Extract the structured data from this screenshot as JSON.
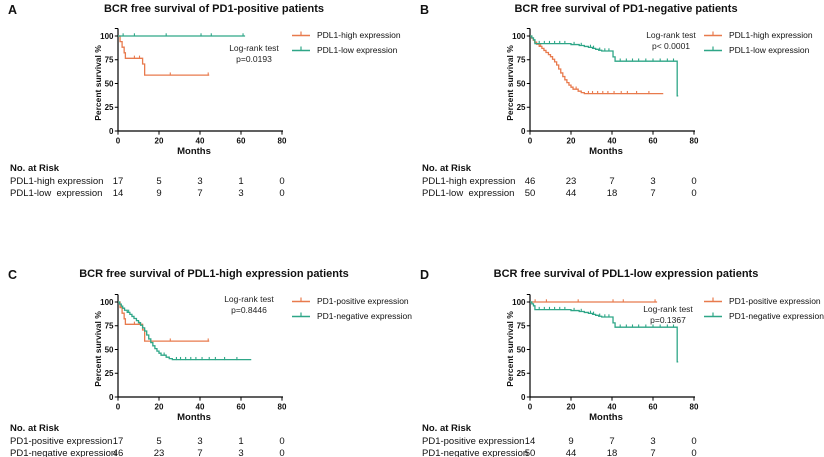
{
  "shared": {
    "colors": {
      "orange": "#E87A4D",
      "teal": "#2EA687",
      "axis": "#000000"
    },
    "x_axis": {
      "label": "Months",
      "ticks": [
        0,
        20,
        40,
        60,
        80
      ]
    },
    "y_axis": {
      "label": "Percent survival %",
      "ticks": [
        0,
        25,
        50,
        75,
        100
      ]
    },
    "risk_header": "No. at Risk"
  },
  "curves": {
    "pd1pos_pdl1high": {
      "steps": [
        [
          0,
          100
        ],
        [
          1,
          100
        ],
        [
          1,
          94.1
        ],
        [
          2,
          94.1
        ],
        [
          2,
          88.2
        ],
        [
          3,
          88.2
        ],
        [
          3,
          82.3
        ],
        [
          3.6,
          82.3
        ],
        [
          3.6,
          76.5
        ],
        [
          12,
          76.5
        ],
        [
          12,
          70.5
        ],
        [
          13,
          70.5
        ],
        [
          13,
          58.8
        ],
        [
          44.5,
          58.8
        ]
      ],
      "censors": [
        [
          8,
          76.5
        ],
        [
          10.5,
          76.5
        ],
        [
          25.5,
          58.8
        ],
        [
          44,
          58.8
        ]
      ]
    },
    "pd1pos_pdl1low": {
      "steps": [
        [
          0,
          100
        ],
        [
          62,
          100
        ]
      ],
      "censors": [
        [
          2.5,
          100
        ],
        [
          8,
          100
        ],
        [
          23.5,
          100
        ],
        [
          40.5,
          100
        ],
        [
          45.5,
          100
        ],
        [
          61,
          100
        ]
      ]
    },
    "pd1neg_pdl1high": {
      "steps": [
        [
          0,
          100
        ],
        [
          0.8,
          100
        ],
        [
          0.8,
          97.8
        ],
        [
          1.6,
          97.8
        ],
        [
          1.6,
          95.6
        ],
        [
          2.3,
          95.6
        ],
        [
          2.3,
          93.5
        ],
        [
          3.2,
          93.5
        ],
        [
          3.2,
          91.3
        ],
        [
          4.5,
          91.3
        ],
        [
          4.5,
          89.1
        ],
        [
          5.8,
          89.1
        ],
        [
          5.8,
          87
        ],
        [
          6.8,
          87
        ],
        [
          6.8,
          84.8
        ],
        [
          7.8,
          84.8
        ],
        [
          7.8,
          82.6
        ],
        [
          9,
          82.6
        ],
        [
          9,
          80.4
        ],
        [
          10,
          80.4
        ],
        [
          10,
          78.2
        ],
        [
          11,
          78.2
        ],
        [
          11,
          75.5
        ],
        [
          12,
          75.5
        ],
        [
          12,
          72.8
        ],
        [
          13,
          72.8
        ],
        [
          13,
          69.5
        ],
        [
          14,
          69.5
        ],
        [
          14,
          65.3
        ],
        [
          15,
          65.3
        ],
        [
          15,
          61.1
        ],
        [
          16,
          61.1
        ],
        [
          16,
          57.3
        ],
        [
          17,
          57.3
        ],
        [
          17,
          53.9
        ],
        [
          18,
          53.9
        ],
        [
          18,
          50.9
        ],
        [
          19,
          50.9
        ],
        [
          19,
          48.3
        ],
        [
          20,
          48.3
        ],
        [
          20,
          46.1
        ],
        [
          21,
          46.1
        ],
        [
          21,
          44
        ],
        [
          23.5,
          44
        ],
        [
          23.5,
          41.9
        ],
        [
          25,
          41.9
        ],
        [
          25,
          40.4
        ],
        [
          26.5,
          40.4
        ],
        [
          26.5,
          39.3
        ],
        [
          65,
          39.3
        ]
      ],
      "censors": [
        [
          5.2,
          89.1
        ],
        [
          22.5,
          44
        ],
        [
          28.5,
          39.3
        ],
        [
          30.5,
          39.3
        ],
        [
          33,
          39.3
        ],
        [
          35.5,
          39.3
        ],
        [
          38,
          39.3
        ],
        [
          41,
          39.3
        ],
        [
          44.5,
          39.3
        ],
        [
          47.5,
          39.3
        ],
        [
          52,
          39.3
        ],
        [
          58,
          39.3
        ]
      ]
    },
    "pd1neg_pdl1low": {
      "steps": [
        [
          0,
          100
        ],
        [
          0.9,
          100
        ],
        [
          0.9,
          98
        ],
        [
          1.7,
          98
        ],
        [
          1.7,
          96
        ],
        [
          2.4,
          96
        ],
        [
          2.4,
          92
        ],
        [
          20,
          92
        ],
        [
          20,
          91
        ],
        [
          24,
          91
        ],
        [
          24,
          90
        ],
        [
          26.5,
          90
        ],
        [
          26.5,
          89
        ],
        [
          28.5,
          89
        ],
        [
          28.5,
          88
        ],
        [
          30.5,
          88
        ],
        [
          30.5,
          87
        ],
        [
          32,
          87
        ],
        [
          32,
          86
        ],
        [
          33.5,
          86
        ],
        [
          33.5,
          85
        ],
        [
          35,
          85
        ],
        [
          35,
          84.2
        ],
        [
          40.5,
          84.2
        ],
        [
          40.5,
          78
        ],
        [
          41.5,
          78
        ],
        [
          41.5,
          73.5
        ],
        [
          71.8,
          73.5
        ],
        [
          71.8,
          37
        ],
        [
          72.3,
          37
        ]
      ],
      "censors": [
        [
          4.5,
          92
        ],
        [
          7,
          92
        ],
        [
          9.5,
          92
        ],
        [
          12,
          92
        ],
        [
          14.5,
          92
        ],
        [
          17,
          92
        ],
        [
          21.5,
          91
        ],
        [
          25,
          90
        ],
        [
          29.5,
          88
        ],
        [
          31,
          87
        ],
        [
          34,
          85
        ],
        [
          36.5,
          84.2
        ],
        [
          38.5,
          84.2
        ],
        [
          44,
          73.5
        ],
        [
          47,
          73.5
        ],
        [
          50,
          73.5
        ],
        [
          53,
          73.5
        ],
        [
          56.5,
          73.5
        ],
        [
          60,
          73.5
        ],
        [
          63.5,
          73.5
        ],
        [
          67,
          73.5
        ],
        [
          70,
          73.5
        ]
      ]
    }
  },
  "chart_data": [
    {
      "letter": "A",
      "type": "line",
      "subtype": "kaplan-meier-step",
      "title": "BCR free survival of PD1-positive patients",
      "xlabel": "Months",
      "ylabel": "Percent survival %",
      "xlim": [
        0,
        80
      ],
      "ylim": [
        0,
        100
      ],
      "legend_position": "right-outside-top",
      "annotation": [
        "Log-rank test",
        "p=0.0193"
      ],
      "series": [
        {
          "name": "PDL1-high expression",
          "color": "orange",
          "curve": "pd1pos_pdl1high"
        },
        {
          "name": "PDL1-low expression",
          "color": "teal",
          "curve": "pd1pos_pdl1low"
        }
      ],
      "risk_table": {
        "rows": [
          {
            "label": "PDL1-high expression",
            "values": [
              "17",
              "5",
              "3",
              "1",
              "0"
            ]
          },
          {
            "label": "PDL1-low  expression",
            "values": [
              "14",
              "9",
              "7",
              "3",
              "0"
            ]
          }
        ]
      }
    },
    {
      "letter": "B",
      "type": "line",
      "subtype": "kaplan-meier-step",
      "title": "BCR free survival of PD1-negative patients",
      "xlabel": "Months",
      "ylabel": "Percent survival %",
      "xlim": [
        0,
        80
      ],
      "ylim": [
        0,
        100
      ],
      "legend_position": "right-outside-top",
      "annotation": [
        "Log-rank test",
        "p< 0.0001"
      ],
      "series": [
        {
          "name": "PDL1-high expression",
          "color": "orange",
          "curve": "pd1neg_pdl1high"
        },
        {
          "name": "PDL1-low expression",
          "color": "teal",
          "curve": "pd1neg_pdl1low"
        }
      ],
      "risk_table": {
        "rows": [
          {
            "label": "PDL1-high expression",
            "values": [
              "46",
              "23",
              "7",
              "3",
              "0"
            ]
          },
          {
            "label": "PDL1-low  expression",
            "values": [
              "50",
              "44",
              "18",
              "7",
              "0"
            ]
          }
        ]
      }
    },
    {
      "letter": "C",
      "type": "line",
      "subtype": "kaplan-meier-step",
      "title": "BCR free survival of PDL1-high expression patients",
      "xlabel": "Months",
      "ylabel": "Percent survival %",
      "xlim": [
        0,
        80
      ],
      "ylim": [
        0,
        100
      ],
      "legend_position": "right-outside-top",
      "annotation": [
        "Log-rank test",
        "p=0.8446"
      ],
      "series": [
        {
          "name": "PD1-positive expression",
          "color": "orange",
          "curve": "pd1pos_pdl1high"
        },
        {
          "name": "PD1-negative expression",
          "color": "teal",
          "curve": "pd1neg_pdl1high"
        }
      ],
      "risk_table": {
        "rows": [
          {
            "label": "PD1-positive expression",
            "values": [
              "17",
              "5",
              "3",
              "1",
              "0"
            ]
          },
          {
            "label": "PD1-negative expression",
            "values": [
              "46",
              "23",
              "7",
              "3",
              "0"
            ]
          }
        ]
      }
    },
    {
      "letter": "D",
      "type": "line",
      "subtype": "kaplan-meier-step",
      "title": "BCR free survival of PDL1-low expression patients",
      "xlabel": "Months",
      "ylabel": "Percent survival %",
      "xlim": [
        0,
        80
      ],
      "ylim": [
        0,
        100
      ],
      "legend_position": "right-outside-top",
      "annotation": [
        "Log-rank test",
        "p=0.1367"
      ],
      "series": [
        {
          "name": "PD1-positive expression",
          "color": "orange",
          "curve": "pd1pos_pdl1low"
        },
        {
          "name": "PD1-negative expression",
          "color": "teal",
          "curve": "pd1neg_pdl1low"
        }
      ],
      "risk_table": {
        "rows": [
          {
            "label": "PD1-positive expression",
            "values": [
              "14",
              "9",
              "7",
              "3",
              "0"
            ]
          },
          {
            "label": "PD1-negative expression",
            "values": [
              "50",
              "44",
              "18",
              "7",
              "0"
            ]
          }
        ]
      }
    }
  ]
}
